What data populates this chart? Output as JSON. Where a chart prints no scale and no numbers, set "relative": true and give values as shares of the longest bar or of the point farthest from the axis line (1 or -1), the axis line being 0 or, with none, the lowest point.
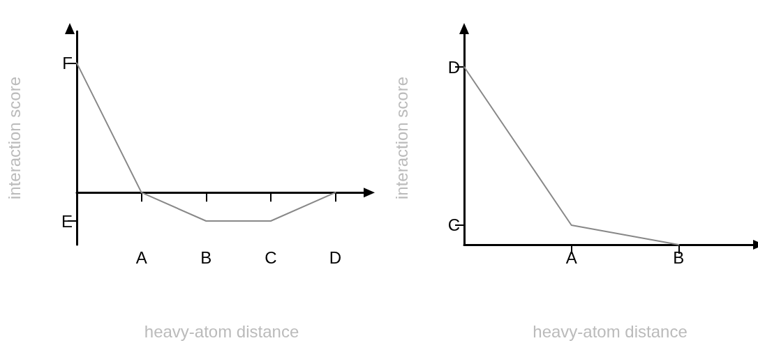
{
  "chart_data": [
    {
      "type": "line",
      "relative": true,
      "xlabel": "heavy-atom distance",
      "ylabel": "interaction score",
      "categories": [
        null,
        "A",
        "B",
        "C",
        "D"
      ],
      "series": [
        {
          "color": "#888888",
          "values": [
            1,
            0,
            -0.22,
            -0.22,
            0
          ]
        }
      ],
      "annotations": [
        "F",
        "E"
      ],
      "grid": false,
      "marker": "none",
      "line_style": "solid"
    },
    {
      "type": "line",
      "relative": true,
      "xlabel": "heavy-atom distance",
      "ylabel": "interaction score",
      "categories": [
        null,
        "A",
        "B"
      ],
      "series": [
        {
          "color": "#888888",
          "values": [
            1,
            0.11,
            0
          ]
        }
      ],
      "annotations": [
        "D",
        "C"
      ],
      "grid": false,
      "marker": "none",
      "line_style": "solid"
    }
  ]
}
